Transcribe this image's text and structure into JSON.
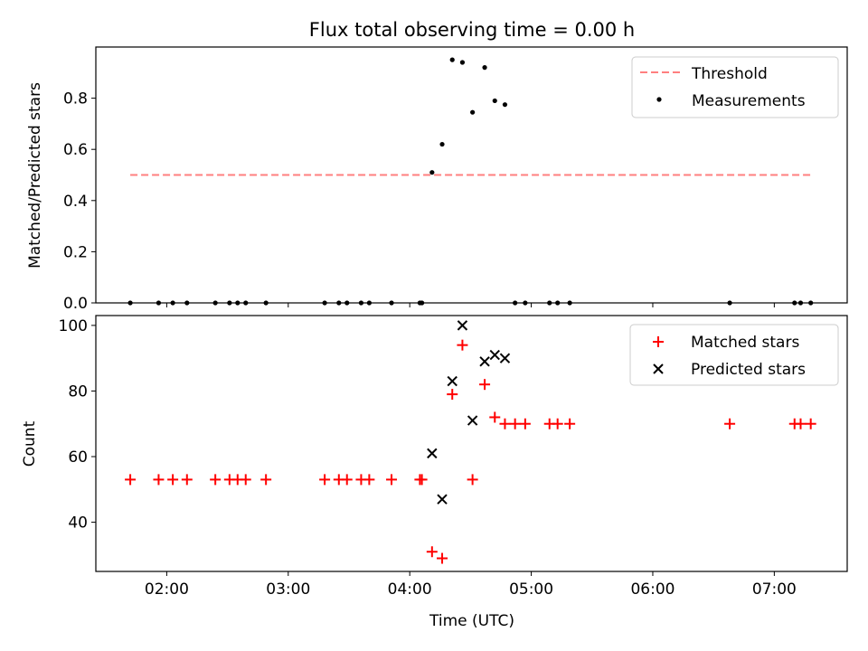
{
  "figure": {
    "title": "Flux total observing time = 0.00 h"
  },
  "chart_data": [
    {
      "type": "scatter",
      "title": "Flux total observing time = 0.00 h",
      "xlabel": "",
      "ylabel": "Matched/Predicted stars",
      "xlim": [
        "01:25",
        "07:36"
      ],
      "ylim": [
        0,
        1.0
      ],
      "yticks": [
        0.0,
        0.2,
        0.4,
        0.6,
        0.8
      ],
      "ytick_labels": [
        "0.0",
        "0.2",
        "0.4",
        "0.6",
        "0.8"
      ],
      "legend": {
        "position": "top-right",
        "entries": [
          "Threshold",
          "Measurements"
        ]
      },
      "threshold": {
        "name": "Threshold",
        "value": 0.5,
        "x_range": [
          "01:42",
          "07:18"
        ],
        "color": "#ff7f7f",
        "style": "dashed"
      },
      "series": [
        {
          "name": "Measurements",
          "marker": "dot",
          "color": "#000000",
          "x": [
            "01:42",
            "01:56",
            "02:03",
            "02:10",
            "02:24",
            "02:31",
            "02:35",
            "02:39",
            "02:49",
            "03:18",
            "03:25",
            "03:29",
            "03:36",
            "03:40",
            "03:51",
            "04:05",
            "04:06",
            "04:11",
            "04:16",
            "04:21",
            "04:26",
            "04:31",
            "04:37",
            "04:42",
            "04:47",
            "04:52",
            "04:57",
            "05:09",
            "05:13",
            "05:19",
            "06:38",
            "07:10",
            "07:13",
            "07:18"
          ],
          "y": [
            0,
            0,
            0,
            0,
            0,
            0,
            0,
            0,
            0,
            0,
            0,
            0,
            0,
            0,
            0,
            0,
            0,
            0.51,
            0.62,
            0.95,
            0.94,
            0.745,
            0.92,
            0.79,
            0.775,
            0,
            0,
            0,
            0,
            0,
            0,
            0,
            0,
            0
          ]
        }
      ]
    },
    {
      "type": "scatter",
      "xlabel": "Time (UTC)",
      "ylabel": "Count",
      "xlim": [
        "01:25",
        "07:36"
      ],
      "ylim": [
        25,
        103
      ],
      "yticks": [
        40,
        60,
        80,
        100
      ],
      "xticks": [
        "02:00",
        "03:00",
        "04:00",
        "05:00",
        "06:00",
        "07:00"
      ],
      "legend": {
        "position": "top-right",
        "entries": [
          "Matched stars",
          "Predicted stars"
        ]
      },
      "series": [
        {
          "name": "Matched stars",
          "marker": "plus",
          "color": "#ff0000",
          "x": [
            "01:42",
            "01:56",
            "02:03",
            "02:10",
            "02:24",
            "02:31",
            "02:35",
            "02:39",
            "02:49",
            "03:18",
            "03:25",
            "03:29",
            "03:36",
            "03:40",
            "03:51",
            "04:05",
            "04:06",
            "04:11",
            "04:16",
            "04:21",
            "04:26",
            "04:31",
            "04:37",
            "04:42",
            "04:47",
            "04:52",
            "04:57",
            "05:09",
            "05:13",
            "05:19",
            "06:38",
            "07:10",
            "07:13",
            "07:18"
          ],
          "y": [
            53,
            53,
            53,
            53,
            53,
            53,
            53,
            53,
            53,
            53,
            53,
            53,
            53,
            53,
            53,
            53,
            53,
            31,
            29,
            79,
            94,
            53,
            82,
            72,
            70,
            70,
            70,
            70,
            70,
            70,
            70,
            70,
            70,
            70
          ]
        },
        {
          "name": "Predicted stars",
          "marker": "x",
          "color": "#000000",
          "x": [
            "04:11",
            "04:16",
            "04:21",
            "04:26",
            "04:31",
            "04:37",
            "04:42",
            "04:47"
          ],
          "y": [
            61,
            47,
            83,
            100,
            71,
            89,
            91,
            90
          ]
        }
      ]
    }
  ]
}
